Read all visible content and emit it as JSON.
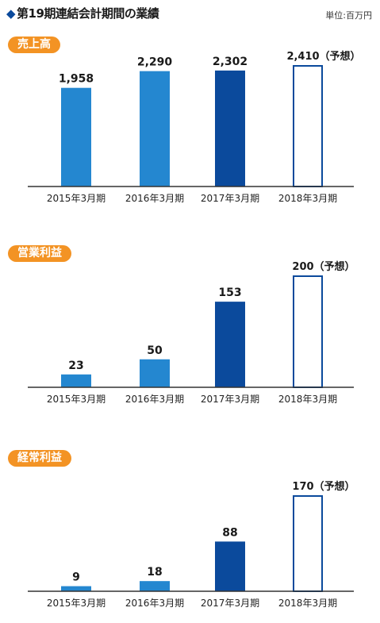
{
  "header": {
    "title": "第19期連結会計期間の業績",
    "unit": "単位:百万円"
  },
  "colors": {
    "light_blue": "#2487d0",
    "dark_blue": "#0b4a9c",
    "forecast_fill": "#ffffff",
    "pill": "#f39324"
  },
  "chart_data": [
    {
      "type": "bar",
      "title": "売上高",
      "categories": [
        "2015年3月期",
        "2016年3月期",
        "2017年3月期",
        "2018年3月期"
      ],
      "values": [
        1958,
        2290,
        2302,
        2410
      ],
      "value_labels": [
        "1,958",
        "2,290",
        "2,302",
        "2,410（予想）"
      ],
      "forecast": [
        false,
        false,
        false,
        true
      ],
      "ylim": [
        0,
        2500
      ]
    },
    {
      "type": "bar",
      "title": "営業利益",
      "categories": [
        "2015年3月期",
        "2016年3月期",
        "2017年3月期",
        "2018年3月期"
      ],
      "values": [
        23,
        50,
        153,
        200
      ],
      "value_labels": [
        "23",
        "50",
        "153",
        "200（予想）"
      ],
      "forecast": [
        false,
        false,
        false,
        true
      ],
      "ylim": [
        0,
        205
      ]
    },
    {
      "type": "bar",
      "title": "経常利益",
      "categories": [
        "2015年3月期",
        "2016年3月期",
        "2017年3月期",
        "2018年3月期"
      ],
      "values": [
        9,
        18,
        88,
        170
      ],
      "value_labels": [
        "9",
        "18",
        "88",
        "170（予想）"
      ],
      "forecast": [
        false,
        false,
        false,
        true
      ],
      "ylim": [
        0,
        175
      ]
    }
  ]
}
